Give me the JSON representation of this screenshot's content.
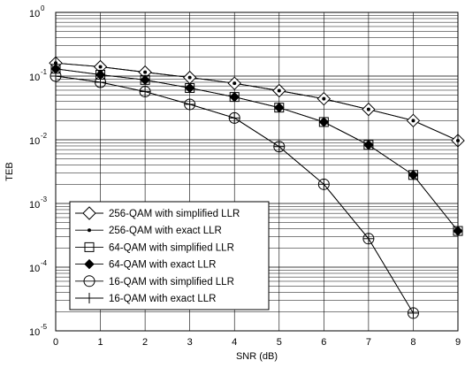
{
  "chart_data": {
    "type": "line",
    "xlabel": "SNR (dB)",
    "ylabel": "TEB",
    "xlim": [
      0,
      9
    ],
    "ylim": [
      1e-05,
      1
    ],
    "yscale": "log",
    "grid": true,
    "legend_position": "bottom-left",
    "x_ticks": [
      "0",
      "1",
      "2",
      "3",
      "4",
      "5",
      "6",
      "7",
      "8",
      "9"
    ],
    "y_ticks": [
      {
        "base": "10",
        "exp": "-5"
      },
      {
        "base": "10",
        "exp": "-4"
      },
      {
        "base": "10",
        "exp": "-3"
      },
      {
        "base": "10",
        "exp": "-2"
      },
      {
        "base": "10",
        "exp": "-1"
      },
      {
        "base": "10",
        "exp": "0"
      }
    ],
    "series": [
      {
        "name": "256-QAM with simplified LLR",
        "marker": "diamond-open",
        "x": [
          0,
          1,
          2,
          3,
          4,
          5,
          6,
          7,
          8,
          9
        ],
        "y": [
          0.16,
          0.14,
          0.115,
          0.095,
          0.077,
          0.059,
          0.044,
          0.03,
          0.02,
          0.0097
        ]
      },
      {
        "name": "256-QAM with exact LLR",
        "marker": "dot",
        "x": [
          0,
          1,
          2,
          3,
          4,
          5,
          6,
          7,
          8,
          9
        ],
        "y": [
          0.16,
          0.14,
          0.115,
          0.095,
          0.077,
          0.059,
          0.044,
          0.03,
          0.02,
          0.0097
        ]
      },
      {
        "name": "64-QAM with simplified LLR",
        "marker": "square-open",
        "x": [
          0,
          1,
          2,
          3,
          4,
          5,
          6,
          7,
          8,
          9
        ],
        "y": [
          0.13,
          0.105,
          0.087,
          0.065,
          0.047,
          0.032,
          0.019,
          0.0083,
          0.0028,
          0.00037
        ]
      },
      {
        "name": "64-QAM with exact LLR",
        "marker": "diamond-filled",
        "x": [
          0,
          1,
          2,
          3,
          4,
          5,
          6,
          7,
          8,
          9
        ],
        "y": [
          0.13,
          0.105,
          0.087,
          0.065,
          0.047,
          0.032,
          0.019,
          0.0083,
          0.0028,
          0.00037
        ]
      },
      {
        "name": "16-QAM with simplified LLR",
        "marker": "circle-open",
        "x": [
          0,
          1,
          2,
          3,
          4,
          5,
          6,
          7,
          8
        ],
        "y": [
          0.1,
          0.08,
          0.057,
          0.036,
          0.022,
          0.0078,
          0.002,
          0.00028,
          1.9e-05
        ]
      },
      {
        "name": "16-QAM with exact LLR",
        "marker": "plus",
        "x": [
          0,
          1,
          2,
          3,
          4,
          5,
          6,
          7,
          8
        ],
        "y": [
          0.1,
          0.08,
          0.057,
          0.036,
          0.022,
          0.0078,
          0.002,
          0.00028,
          1.9e-05
        ]
      }
    ]
  }
}
